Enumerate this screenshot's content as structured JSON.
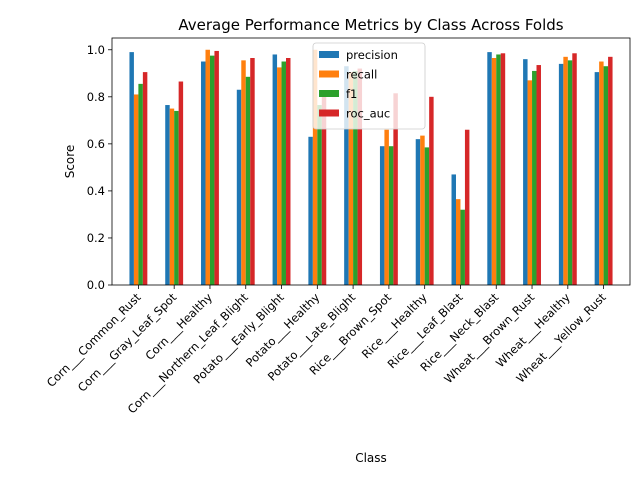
{
  "chart_data": {
    "type": "bar",
    "title": "Average Performance Metrics by Class Across Folds",
    "xlabel": "Class",
    "ylabel": "Score",
    "ylim": [
      0,
      1.05
    ],
    "yticks": [
      "0.0",
      "0.2",
      "0.4",
      "0.6",
      "0.8",
      "1.0"
    ],
    "grid": false,
    "legend_position": "top-center",
    "categories": [
      "Corn___Common_Rust",
      "Corn___Gray_Leaf_Spot",
      "Corn___Healthy",
      "Corn___Northern_Leaf_Blight",
      "Potato___Early_Blight",
      "Potato___Healthy",
      "Potato___Late_Blight",
      "Rice___Brown_Spot",
      "Rice___Healthy",
      "Rice___Leaf_Blast",
      "Rice___Neck_Blast",
      "Wheat___Brown_Rust",
      "Wheat___Healthy",
      "Wheat___Yellow_Rust"
    ],
    "series": [
      {
        "name": "precision",
        "color": "#1f77b4",
        "values": [
          0.99,
          0.765,
          0.95,
          0.83,
          0.98,
          0.63,
          0.93,
          0.59,
          0.62,
          0.47,
          0.99,
          0.96,
          0.94,
          0.905
        ]
      },
      {
        "name": "recall",
        "color": "#ff7f0e",
        "values": [
          0.81,
          0.75,
          1.0,
          0.955,
          0.925,
          1.0,
          0.905,
          0.66,
          0.635,
          0.365,
          0.965,
          0.87,
          0.97,
          0.95
        ]
      },
      {
        "name": "f1",
        "color": "#2ca02c",
        "values": [
          0.855,
          0.74,
          0.975,
          0.885,
          0.95,
          0.765,
          0.91,
          0.59,
          0.585,
          0.32,
          0.98,
          0.91,
          0.955,
          0.93
        ]
      },
      {
        "name": "roc_auc",
        "color": "#d62728",
        "values": [
          0.905,
          0.865,
          0.995,
          0.965,
          0.965,
          0.8,
          0.92,
          0.815,
          0.8,
          0.66,
          0.985,
          0.935,
          0.985,
          0.97
        ]
      }
    ]
  }
}
